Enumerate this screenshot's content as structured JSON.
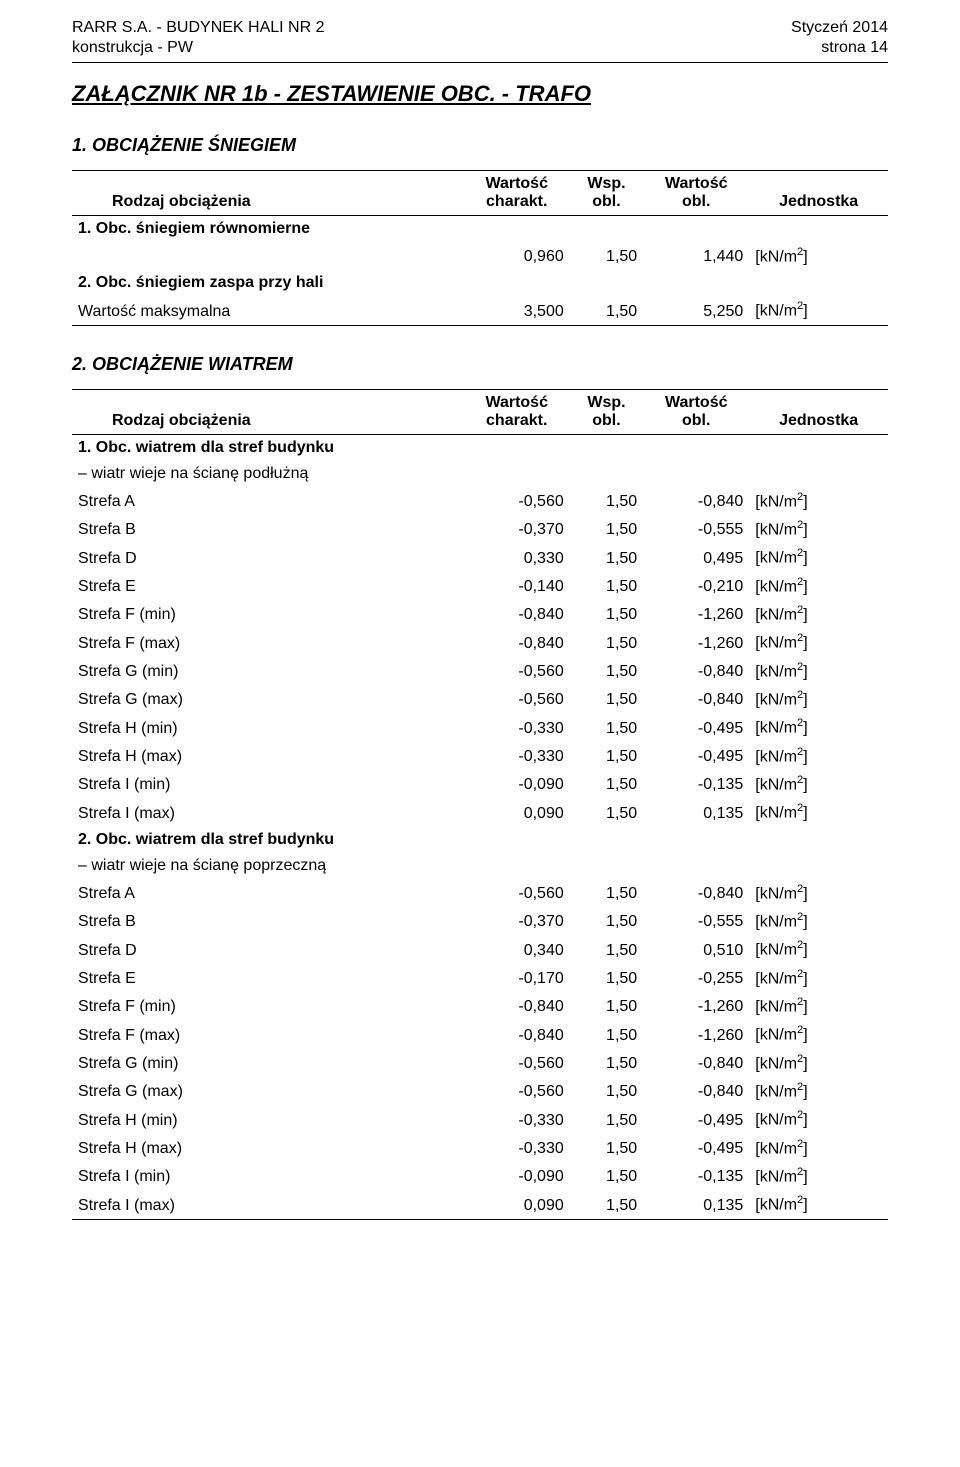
{
  "header": {
    "left_line1": "RARR S.A. - BUDYNEK HALI NR 2",
    "left_line2": "konstrukcja - PW",
    "right_line1": "Styczeń 2014",
    "right_line2": "strona 14"
  },
  "title": "ZAŁĄCZNIK NR 1b - ZESTAWIENIE OBC. - TRAFO",
  "sections": {
    "snow": {
      "heading": "1. OBCIĄŻENIE ŚNIEGIEM",
      "columns": {
        "label": "Rodzaj obciążenia",
        "char": "Wartość charakt.",
        "wsp": "Wsp. obl.",
        "obl": "Wartość obl.",
        "unit": "Jednostka"
      },
      "rows": [
        {
          "type": "cat",
          "label": "1. Obc. śniegiem równomierne"
        },
        {
          "type": "val",
          "label": "",
          "char": "0,960",
          "wsp": "1,50",
          "obl": "1,440",
          "unit": "[kN/m²]"
        },
        {
          "type": "cat",
          "label": "2. Obc. śniegiem zaspa przy hali"
        },
        {
          "type": "val",
          "label": "Wartość maksymalna",
          "char": "3,500",
          "wsp": "1,50",
          "obl": "5,250",
          "unit": "[kN/m²]"
        }
      ]
    },
    "wind": {
      "heading": "2. OBCIĄŻENIE WIATREM",
      "columns": {
        "label": "Rodzaj obciążenia",
        "char": "Wartość charakt.",
        "wsp": "Wsp. obl.",
        "obl": "Wartość obl.",
        "unit": "Jednostka"
      },
      "rows": [
        {
          "type": "cat",
          "label": "1. Obc. wiatrem dla stref budynku"
        },
        {
          "type": "cat2",
          "label": "– wiatr wieje na ścianę podłużną"
        },
        {
          "type": "val",
          "label": "Strefa A",
          "char": "-0,560",
          "wsp": "1,50",
          "obl": "-0,840",
          "unit": "[kN/m²]"
        },
        {
          "type": "val",
          "label": "Strefa B",
          "char": "-0,370",
          "wsp": "1,50",
          "obl": "-0,555",
          "unit": "[kN/m²]"
        },
        {
          "type": "val",
          "label": "Strefa D",
          "char": "0,330",
          "wsp": "1,50",
          "obl": "0,495",
          "unit": "[kN/m²]"
        },
        {
          "type": "val",
          "label": "Strefa E",
          "char": "-0,140",
          "wsp": "1,50",
          "obl": "-0,210",
          "unit": "[kN/m²]"
        },
        {
          "type": "val",
          "label": "Strefa F (min)",
          "char": "-0,840",
          "wsp": "1,50",
          "obl": "-1,260",
          "unit": "[kN/m²]"
        },
        {
          "type": "val",
          "label": "Strefa F (max)",
          "char": "-0,840",
          "wsp": "1,50",
          "obl": "-1,260",
          "unit": "[kN/m²]"
        },
        {
          "type": "val",
          "label": "Strefa G (min)",
          "char": "-0,560",
          "wsp": "1,50",
          "obl": "-0,840",
          "unit": "[kN/m²]"
        },
        {
          "type": "val",
          "label": "Strefa G (max)",
          "char": "-0,560",
          "wsp": "1,50",
          "obl": "-0,840",
          "unit": "[kN/m²]"
        },
        {
          "type": "val",
          "label": "Strefa H (min)",
          "char": "-0,330",
          "wsp": "1,50",
          "obl": "-0,495",
          "unit": "[kN/m²]"
        },
        {
          "type": "val",
          "label": "Strefa H (max)",
          "char": "-0,330",
          "wsp": "1,50",
          "obl": "-0,495",
          "unit": "[kN/m²]"
        },
        {
          "type": "val",
          "label": "Strefa I (min)",
          "char": "-0,090",
          "wsp": "1,50",
          "obl": "-0,135",
          "unit": "[kN/m²]"
        },
        {
          "type": "val",
          "label": "Strefa I (max)",
          "char": "0,090",
          "wsp": "1,50",
          "obl": "0,135",
          "unit": "[kN/m²]"
        },
        {
          "type": "cat",
          "label": "2. Obc. wiatrem dla stref budynku"
        },
        {
          "type": "cat2",
          "label": "– wiatr wieje na ścianę poprzeczną"
        },
        {
          "type": "val",
          "label": "Strefa A",
          "char": "-0,560",
          "wsp": "1,50",
          "obl": "-0,840",
          "unit": "[kN/m²]"
        },
        {
          "type": "val",
          "label": "Strefa B",
          "char": "-0,370",
          "wsp": "1,50",
          "obl": "-0,555",
          "unit": "[kN/m²]"
        },
        {
          "type": "val",
          "label": "Strefa D",
          "char": "0,340",
          "wsp": "1,50",
          "obl": "0,510",
          "unit": "[kN/m²]"
        },
        {
          "type": "val",
          "label": "Strefa E",
          "char": "-0,170",
          "wsp": "1,50",
          "obl": "-0,255",
          "unit": "[kN/m²]"
        },
        {
          "type": "val",
          "label": "Strefa F (min)",
          "char": "-0,840",
          "wsp": "1,50",
          "obl": "-1,260",
          "unit": "[kN/m²]"
        },
        {
          "type": "val",
          "label": "Strefa F (max)",
          "char": "-0,840",
          "wsp": "1,50",
          "obl": "-1,260",
          "unit": "[kN/m²]"
        },
        {
          "type": "val",
          "label": "Strefa G (min)",
          "char": "-0,560",
          "wsp": "1,50",
          "obl": "-0,840",
          "unit": "[kN/m²]"
        },
        {
          "type": "val",
          "label": "Strefa G (max)",
          "char": "-0,560",
          "wsp": "1,50",
          "obl": "-0,840",
          "unit": "[kN/m²]"
        },
        {
          "type": "val",
          "label": "Strefa H (min)",
          "char": "-0,330",
          "wsp": "1,50",
          "obl": "-0,495",
          "unit": "[kN/m²]"
        },
        {
          "type": "val",
          "label": "Strefa H (max)",
          "char": "-0,330",
          "wsp": "1,50",
          "obl": "-0,495",
          "unit": "[kN/m²]"
        },
        {
          "type": "val",
          "label": "Strefa I (min)",
          "char": "-0,090",
          "wsp": "1,50",
          "obl": "-0,135",
          "unit": "[kN/m²]"
        },
        {
          "type": "val",
          "label": "Strefa I (max)",
          "char": "0,090",
          "wsp": "1,50",
          "obl": "0,135",
          "unit": "[kN/m²]"
        }
      ]
    }
  }
}
